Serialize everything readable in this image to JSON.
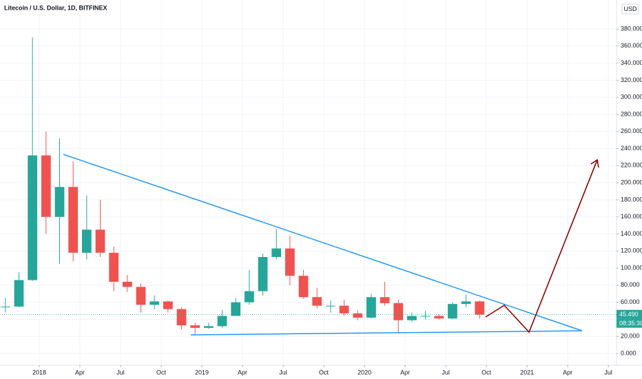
{
  "chart_data": {
    "type": "candlestick",
    "title": "Litecoin / U.S. Dollar, 1D, BITFINEX",
    "currency": "USD",
    "last_price": 45.49,
    "last_price_label": "45.490",
    "countdown": "08:35:30",
    "up_color": "#26a69a",
    "down_color": "#ef5350",
    "x": [
      "2017-10",
      "2017-11",
      "2017-12",
      "2018-01",
      "2018-02",
      "2018-03",
      "2018-04",
      "2018-05",
      "2018-06",
      "2018-07",
      "2018-08",
      "2018-09",
      "2018-10",
      "2018-11",
      "2018-12",
      "2019-01",
      "2019-02",
      "2019-03",
      "2019-04",
      "2019-05",
      "2019-06",
      "2019-07",
      "2019-08",
      "2019-09",
      "2019-10",
      "2019-11",
      "2019-12",
      "2020-01",
      "2020-02",
      "2020-03",
      "2020-04",
      "2020-05",
      "2020-06",
      "2020-07",
      "2020-08",
      "2020-09"
    ],
    "open": [
      55,
      55,
      86,
      232,
      160,
      195,
      118,
      145,
      118,
      84,
      78,
      57,
      61,
      52,
      33,
      30,
      32,
      44,
      60,
      73,
      113,
      123,
      91,
      66,
      56,
      56,
      47,
      42,
      66,
      59,
      39,
      44,
      44,
      41,
      58,
      61
    ],
    "high": [
      65,
      95,
      370,
      260,
      252,
      225,
      185,
      180,
      125,
      92,
      82,
      68,
      62,
      54,
      36,
      36,
      51,
      65,
      98,
      117,
      146,
      138,
      98,
      77,
      62,
      63,
      51,
      70,
      84,
      63,
      48,
      50,
      46,
      60,
      69,
      62
    ],
    "low": [
      48,
      54,
      85,
      140,
      105,
      108,
      110,
      113,
      73,
      72,
      48,
      52,
      48,
      28,
      22,
      29,
      30,
      44,
      57,
      68,
      110,
      80,
      64,
      53,
      48,
      44,
      39,
      41,
      56,
      24,
      37,
      40,
      40,
      40,
      54,
      41
    ],
    "close": [
      55,
      86,
      232,
      160,
      195,
      118,
      145,
      118,
      84,
      78,
      57,
      61,
      52,
      33,
      30,
      32,
      44,
      60,
      73,
      113,
      123,
      91,
      66,
      56,
      56,
      47,
      42,
      66,
      59,
      39,
      44,
      44,
      41,
      58,
      61,
      45.49
    ],
    "ylim": [
      -13.7,
      413.9
    ],
    "yticks": [
      {
        "value": 0,
        "label": "0.000"
      },
      {
        "value": 20,
        "label": "20.000"
      },
      {
        "value": 40,
        "label": "40.000"
      },
      {
        "value": 60,
        "label": "60.000"
      },
      {
        "value": 80,
        "label": "80.000"
      },
      {
        "value": 100,
        "label": "100.000"
      },
      {
        "value": 120,
        "label": "120.000"
      },
      {
        "value": 140,
        "label": "140.000"
      },
      {
        "value": 160,
        "label": "160.000"
      },
      {
        "value": 180,
        "label": "180.000"
      },
      {
        "value": 200,
        "label": "200.000"
      },
      {
        "value": 220,
        "label": "220.000"
      },
      {
        "value": 240,
        "label": "240.000"
      },
      {
        "value": 260,
        "label": "260.000"
      },
      {
        "value": 280,
        "label": "280.000"
      },
      {
        "value": 300,
        "label": "300.000"
      },
      {
        "value": 320,
        "label": "320.000"
      },
      {
        "value": 340,
        "label": "340.000"
      },
      {
        "value": 360,
        "label": "360.000"
      },
      {
        "value": 380,
        "label": "380.000"
      }
    ],
    "xticks": [
      {
        "value": "2018-01",
        "label": "2018"
      },
      {
        "value": "2018-04",
        "label": "Apr"
      },
      {
        "value": "2018-07",
        "label": "Jul"
      },
      {
        "value": "2018-10",
        "label": "Oct"
      },
      {
        "value": "2019-01",
        "label": "2019"
      },
      {
        "value": "2019-04",
        "label": "Apr"
      },
      {
        "value": "2019-07",
        "label": "Jul"
      },
      {
        "value": "2019-10",
        "label": "Oct"
      },
      {
        "value": "2020-01",
        "label": "2020"
      },
      {
        "value": "2020-04",
        "label": "Apr"
      },
      {
        "value": "2020-07",
        "label": "Jul"
      },
      {
        "value": "2020-10",
        "label": "Oct"
      },
      {
        "value": "2021-01",
        "label": "2021"
      },
      {
        "value": "2021-04",
        "label": "Apr"
      },
      {
        "value": "2021-07",
        "label": "Jul"
      }
    ],
    "grid": true
  }
}
